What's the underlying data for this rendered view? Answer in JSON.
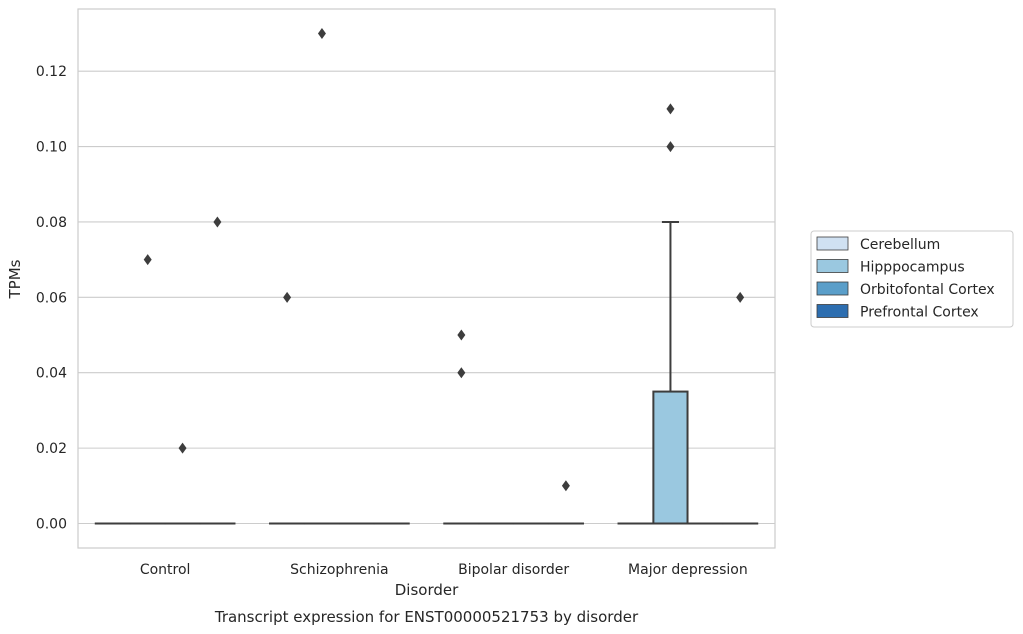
{
  "chart_data": {
    "type": "box",
    "caption": "Transcript expression for ENST00000521753 by disorder",
    "xlabel": "Disorder",
    "ylabel": "TPMs",
    "ylim": [
      -0.0065,
      0.1365
    ],
    "y_ticks": [
      0.0,
      0.02,
      0.04,
      0.06,
      0.08,
      0.1,
      0.12
    ],
    "y_tick_labels": [
      "0.00",
      "0.02",
      "0.04",
      "0.06",
      "0.08",
      "0.10",
      "0.12"
    ],
    "grid": "horizontal",
    "legend_position": "right",
    "categories": [
      "Control",
      "Schizophrenia",
      "Bipolar disorder",
      "Major depression"
    ],
    "series": [
      {
        "name": "Cerebellum",
        "color": "#d0e1f2",
        "boxes": [
          {
            "q1": 0,
            "median": 0,
            "q3": 0,
            "whisker_low": 0,
            "whisker_high": 0,
            "outliers": []
          },
          {
            "q1": 0,
            "median": 0,
            "q3": 0,
            "whisker_low": 0,
            "whisker_high": 0,
            "outliers": []
          },
          {
            "q1": 0,
            "median": 0,
            "q3": 0,
            "whisker_low": 0,
            "whisker_high": 0,
            "outliers": []
          },
          {
            "q1": 0,
            "median": 0,
            "q3": 0,
            "whisker_low": 0,
            "whisker_high": 0,
            "outliers": []
          }
        ]
      },
      {
        "name": "Hipppocampus",
        "color": "#9ac8e0",
        "boxes": [
          {
            "q1": 0,
            "median": 0,
            "q3": 0,
            "whisker_low": 0,
            "whisker_high": 0,
            "outliers": [
              0.07
            ]
          },
          {
            "q1": 0,
            "median": 0,
            "q3": 0,
            "whisker_low": 0,
            "whisker_high": 0,
            "outliers": [
              0.13
            ]
          },
          {
            "q1": 0,
            "median": 0,
            "q3": 0,
            "whisker_low": 0,
            "whisker_high": 0,
            "outliers": []
          },
          {
            "q1": 0,
            "median": 0,
            "q3": 0.035,
            "whisker_low": 0,
            "whisker_high": 0.08,
            "outliers": [
              0.11,
              0.1
            ]
          }
        ]
      },
      {
        "name": "Orbitofontal Cortex",
        "color": "#5a9ec9",
        "boxes": [
          {
            "q1": 0,
            "median": 0,
            "q3": 0,
            "whisker_low": 0,
            "whisker_high": 0,
            "outliers": [
              0.02
            ]
          },
          {
            "q1": 0,
            "median": 0,
            "q3": 0,
            "whisker_low": 0,
            "whisker_high": 0,
            "outliers": []
          },
          {
            "q1": 0,
            "median": 0,
            "q3": 0,
            "whisker_low": 0,
            "whisker_high": 0,
            "outliers": []
          },
          {
            "q1": 0,
            "median": 0,
            "q3": 0,
            "whisker_low": 0,
            "whisker_high": 0,
            "outliers": []
          }
        ]
      },
      {
        "name": "Prefrontal Cortex",
        "color": "#2d6eb0",
        "boxes": [
          {
            "q1": 0,
            "median": 0,
            "q3": 0,
            "whisker_low": 0,
            "whisker_high": 0,
            "outliers": [
              0.08
            ]
          },
          {
            "q1": 0,
            "median": 0,
            "q3": 0,
            "whisker_low": 0,
            "whisker_high": 0,
            "outliers": []
          },
          {
            "q1": 0,
            "median": 0,
            "q3": 0,
            "whisker_low": 0,
            "whisker_high": 0,
            "outliers": [
              0.01
            ]
          },
          {
            "q1": 0,
            "median": 0,
            "q3": 0,
            "whisker_low": 0,
            "whisker_high": 0,
            "outliers": [
              0.06
            ]
          }
        ]
      }
    ],
    "extra_outliers": [
      {
        "category_index": 1,
        "series_index": 0,
        "value": 0.06
      },
      {
        "category_index": 2,
        "series_index": 0,
        "value": 0.05
      },
      {
        "category_index": 2,
        "series_index": 0,
        "value": 0.04
      }
    ]
  }
}
